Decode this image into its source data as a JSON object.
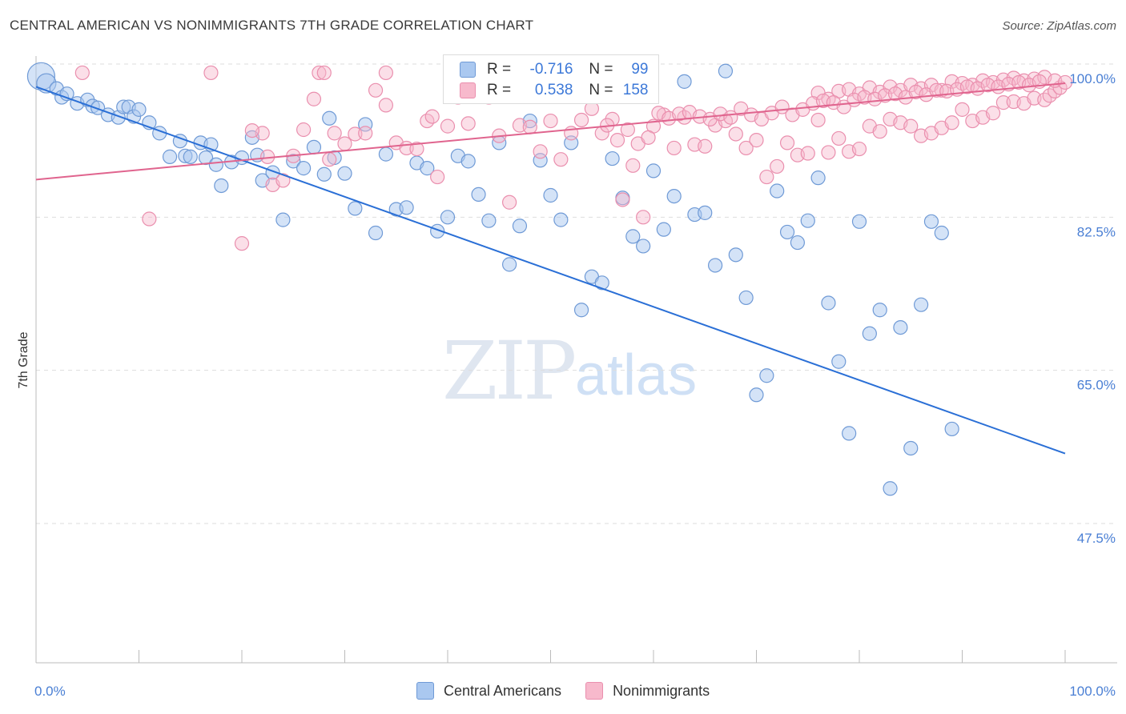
{
  "title": "CENTRAL AMERICAN VS NONIMMIGRANTS 7TH GRADE CORRELATION CHART",
  "source": "Source: ZipAtlas.com",
  "watermark": {
    "zip": "ZIP",
    "atlas": "atlas"
  },
  "legend": {
    "r_label": "R =",
    "n_label": "N =",
    "rows": [
      {
        "r": "-0.716",
        "n": "99"
      },
      {
        "r": "0.538",
        "n": "158"
      }
    ]
  },
  "bottom_legend": [
    "Central Americans",
    "Nonimmigrants"
  ],
  "colors": {
    "blue_fill": "#aac8f0",
    "blue_stroke": "#6f9ad6",
    "blue_line": "#2a6fd6",
    "pink_fill": "#f7b9cc",
    "pink_stroke": "#ea8fae",
    "pink_line": "#e0648e"
  },
  "chart_data": {
    "type": "scatter",
    "title": "CENTRAL AMERICAN VS NONIMMIGRANTS 7TH GRADE CORRELATION CHART",
    "xlabel": "",
    "ylabel": "7th Grade",
    "xlim": [
      0,
      100
    ],
    "ylim": [
      32,
      100.5
    ],
    "x_ticks": [
      "0.0%",
      "100.0%"
    ],
    "y_ticks": [
      {
        "value": 100.0,
        "label": "100.0%"
      },
      {
        "value": 82.5,
        "label": "82.5%"
      },
      {
        "value": 65.0,
        "label": "65.0%"
      },
      {
        "value": 47.5,
        "label": "47.5%"
      }
    ],
    "grid": true,
    "series": [
      {
        "name": "Central Americans",
        "r": -0.716,
        "n": 99,
        "trend": [
          [
            0,
            97.4
          ],
          [
            100,
            55.5
          ]
        ],
        "points": [
          [
            0.5,
            98.6
          ],
          [
            1,
            97.8
          ],
          [
            2,
            97.2
          ],
          [
            2.5,
            96.2
          ],
          [
            3,
            96.6
          ],
          [
            4,
            95.5
          ],
          [
            5,
            95.9
          ],
          [
            5.5,
            95.2
          ],
          [
            6,
            95.0
          ],
          [
            7,
            94.2
          ],
          [
            8,
            93.9
          ],
          [
            8.5,
            95.1
          ],
          [
            9,
            95.1
          ],
          [
            9.5,
            94.0
          ],
          [
            10,
            94.8
          ],
          [
            11,
            93.3
          ],
          [
            12,
            92.1
          ],
          [
            13,
            89.4
          ],
          [
            14,
            91.2
          ],
          [
            14.5,
            89.5
          ],
          [
            15,
            89.4
          ],
          [
            16,
            91.0
          ],
          [
            16.5,
            89.3
          ],
          [
            17,
            90.8
          ],
          [
            17.5,
            88.5
          ],
          [
            18,
            86.1
          ],
          [
            19,
            88.8
          ],
          [
            20,
            89.3
          ],
          [
            21,
            91.6
          ],
          [
            21.5,
            89.6
          ],
          [
            22,
            86.7
          ],
          [
            23,
            87.6
          ],
          [
            24,
            82.2
          ],
          [
            25,
            88.9
          ],
          [
            26,
            88.1
          ],
          [
            27,
            90.5
          ],
          [
            28,
            87.4
          ],
          [
            28.5,
            93.8
          ],
          [
            29,
            89.3
          ],
          [
            30,
            87.5
          ],
          [
            31,
            83.5
          ],
          [
            32,
            93.1
          ],
          [
            33,
            80.7
          ],
          [
            34,
            89.7
          ],
          [
            35,
            83.4
          ],
          [
            36,
            83.6
          ],
          [
            37,
            88.7
          ],
          [
            38,
            88.1
          ],
          [
            39,
            80.9
          ],
          [
            40,
            82.5
          ],
          [
            41,
            89.5
          ],
          [
            42,
            88.9
          ],
          [
            43,
            85.1
          ],
          [
            44,
            82.1
          ],
          [
            45,
            91.0
          ],
          [
            46,
            77.1
          ],
          [
            47,
            81.5
          ],
          [
            48,
            93.5
          ],
          [
            49,
            89.0
          ],
          [
            50,
            85.0
          ],
          [
            51,
            82.2
          ],
          [
            52,
            91.0
          ],
          [
            53,
            71.9
          ],
          [
            54,
            75.7
          ],
          [
            55,
            75.0
          ],
          [
            56,
            89.2
          ],
          [
            57,
            84.7
          ],
          [
            58,
            80.3
          ],
          [
            59,
            79.2
          ],
          [
            60,
            87.8
          ],
          [
            61,
            81.1
          ],
          [
            62,
            84.9
          ],
          [
            63,
            98.0
          ],
          [
            64,
            82.8
          ],
          [
            65,
            83.0
          ],
          [
            66,
            77.0
          ],
          [
            67,
            99.2
          ],
          [
            68,
            78.2
          ],
          [
            69,
            73.3
          ],
          [
            70,
            62.2
          ],
          [
            71,
            64.4
          ],
          [
            72,
            85.5
          ],
          [
            73,
            80.8
          ],
          [
            74,
            79.6
          ],
          [
            75,
            82.1
          ],
          [
            76,
            87.0
          ],
          [
            77,
            72.7
          ],
          [
            78,
            66.0
          ],
          [
            79,
            57.8
          ],
          [
            80,
            82.0
          ],
          [
            81,
            69.2
          ],
          [
            82,
            71.9
          ],
          [
            83,
            51.5
          ],
          [
            84,
            69.9
          ],
          [
            85,
            56.1
          ],
          [
            86,
            72.5
          ],
          [
            87,
            82.0
          ],
          [
            88,
            80.7
          ],
          [
            89,
            58.3
          ]
        ]
      },
      {
        "name": "Nonimmigrants",
        "r": 0.538,
        "n": 158,
        "trend": [
          [
            0,
            86.8
          ],
          [
            100,
            97.8
          ]
        ],
        "points": [
          [
            4.5,
            99.0
          ],
          [
            17,
            99.0
          ],
          [
            27.5,
            99.0
          ],
          [
            28,
            99.0
          ],
          [
            34,
            99.0
          ],
          [
            11,
            82.3
          ],
          [
            20,
            79.5
          ],
          [
            22,
            92.1
          ],
          [
            21,
            92.4
          ],
          [
            22.5,
            89.4
          ],
          [
            23,
            86.2
          ],
          [
            24,
            86.7
          ],
          [
            25,
            89.5
          ],
          [
            26,
            92.5
          ],
          [
            27,
            96.0
          ],
          [
            28.5,
            89.1
          ],
          [
            29,
            92.1
          ],
          [
            30,
            90.9
          ],
          [
            31,
            92.0
          ],
          [
            32,
            92.1
          ],
          [
            33,
            97.0
          ],
          [
            34,
            95.3
          ],
          [
            35,
            91.0
          ],
          [
            36,
            90.4
          ],
          [
            37,
            90.3
          ],
          [
            38,
            93.5
          ],
          [
            38.5,
            94.0
          ],
          [
            39,
            87.1
          ],
          [
            40,
            92.9
          ],
          [
            41,
            96.2
          ],
          [
            42,
            93.2
          ],
          [
            43,
            96.3
          ],
          [
            44,
            96.2
          ],
          [
            45,
            91.8
          ],
          [
            46,
            84.2
          ],
          [
            47,
            93.0
          ],
          [
            48,
            92.8
          ],
          [
            49,
            90.0
          ],
          [
            50,
            93.5
          ],
          [
            51,
            89.1
          ],
          [
            52,
            92.1
          ],
          [
            53,
            93.6
          ],
          [
            54,
            94.9
          ],
          [
            55,
            92.1
          ],
          [
            56,
            93.7
          ],
          [
            57,
            84.5
          ],
          [
            58,
            88.4
          ],
          [
            59,
            82.5
          ],
          [
            60,
            92.9
          ],
          [
            61,
            94.2
          ],
          [
            62,
            90.4
          ],
          [
            63,
            93.9
          ],
          [
            64,
            90.8
          ],
          [
            65,
            90.6
          ],
          [
            66,
            93.0
          ],
          [
            67,
            93.5
          ],
          [
            68,
            92.0
          ],
          [
            69,
            90.4
          ],
          [
            70,
            91.3
          ],
          [
            71,
            87.1
          ],
          [
            72,
            88.3
          ],
          [
            73,
            91.0
          ],
          [
            74,
            89.6
          ],
          [
            75,
            89.8
          ],
          [
            76,
            93.6
          ],
          [
            77,
            89.9
          ],
          [
            78,
            91.5
          ],
          [
            79,
            90.0
          ],
          [
            80,
            90.3
          ],
          [
            81,
            92.9
          ],
          [
            82,
            92.3
          ],
          [
            83,
            93.7
          ],
          [
            84,
            93.3
          ],
          [
            85,
            92.9
          ],
          [
            86,
            91.8
          ],
          [
            87,
            92.1
          ],
          [
            88,
            92.7
          ],
          [
            89,
            93.3
          ],
          [
            90,
            94.8
          ],
          [
            91,
            93.5
          ],
          [
            92,
            93.9
          ],
          [
            93,
            94.4
          ],
          [
            94,
            95.6
          ],
          [
            95,
            95.7
          ],
          [
            96,
            95.5
          ],
          [
            97,
            96.1
          ],
          [
            98,
            95.9
          ],
          [
            98.5,
            96.4
          ],
          [
            99,
            96.9
          ],
          [
            99.5,
            97.3
          ],
          [
            76,
            96.7
          ],
          [
            77,
            96.0
          ],
          [
            78,
            96.9
          ],
          [
            79,
            97.1
          ],
          [
            80,
            96.6
          ],
          [
            81,
            97.3
          ],
          [
            82,
            96.8
          ],
          [
            83,
            97.4
          ],
          [
            84,
            97.0
          ],
          [
            85,
            97.6
          ],
          [
            86,
            97.2
          ],
          [
            87,
            97.6
          ],
          [
            88,
            97.0
          ],
          [
            89,
            98.0
          ],
          [
            90,
            97.8
          ],
          [
            91,
            97.6
          ],
          [
            92,
            98.1
          ],
          [
            93,
            97.9
          ],
          [
            94,
            98.2
          ],
          [
            95,
            98.4
          ],
          [
            96,
            98.1
          ],
          [
            97,
            98.3
          ],
          [
            98,
            98.5
          ],
          [
            99,
            98.1
          ],
          [
            100,
            97.9
          ],
          [
            60.5,
            94.4
          ],
          [
            61.5,
            93.8
          ],
          [
            62.5,
            94.3
          ],
          [
            63.5,
            94.5
          ],
          [
            64.5,
            94.0
          ],
          [
            65.5,
            93.7
          ],
          [
            66.5,
            94.3
          ],
          [
            67.5,
            93.9
          ],
          [
            68.5,
            94.9
          ],
          [
            69.5,
            94.2
          ],
          [
            70.5,
            93.7
          ],
          [
            71.5,
            94.4
          ],
          [
            72.5,
            95.1
          ],
          [
            73.5,
            94.2
          ],
          [
            74.5,
            94.8
          ],
          [
            75.5,
            95.5
          ],
          [
            76.5,
            95.8
          ],
          [
            77.5,
            95.6
          ],
          [
            78.5,
            95.1
          ],
          [
            79.5,
            95.9
          ],
          [
            80.5,
            96.2
          ],
          [
            81.5,
            96.0
          ],
          [
            82.5,
            96.4
          ],
          [
            83.5,
            96.6
          ],
          [
            84.5,
            96.2
          ],
          [
            85.5,
            96.8
          ],
          [
            86.5,
            96.5
          ],
          [
            87.5,
            97.0
          ],
          [
            88.5,
            96.9
          ],
          [
            89.5,
            97.1
          ],
          [
            90.5,
            97.4
          ],
          [
            91.5,
            97.2
          ],
          [
            92.5,
            97.6
          ],
          [
            93.5,
            97.4
          ],
          [
            94.5,
            97.7
          ],
          [
            95.5,
            97.9
          ],
          [
            96.5,
            97.6
          ],
          [
            97.5,
            98.0
          ],
          [
            55.5,
            93.0
          ],
          [
            56.5,
            91.3
          ],
          [
            57.5,
            92.5
          ],
          [
            58.5,
            90.9
          ],
          [
            59.5,
            91.6
          ]
        ]
      }
    ]
  }
}
